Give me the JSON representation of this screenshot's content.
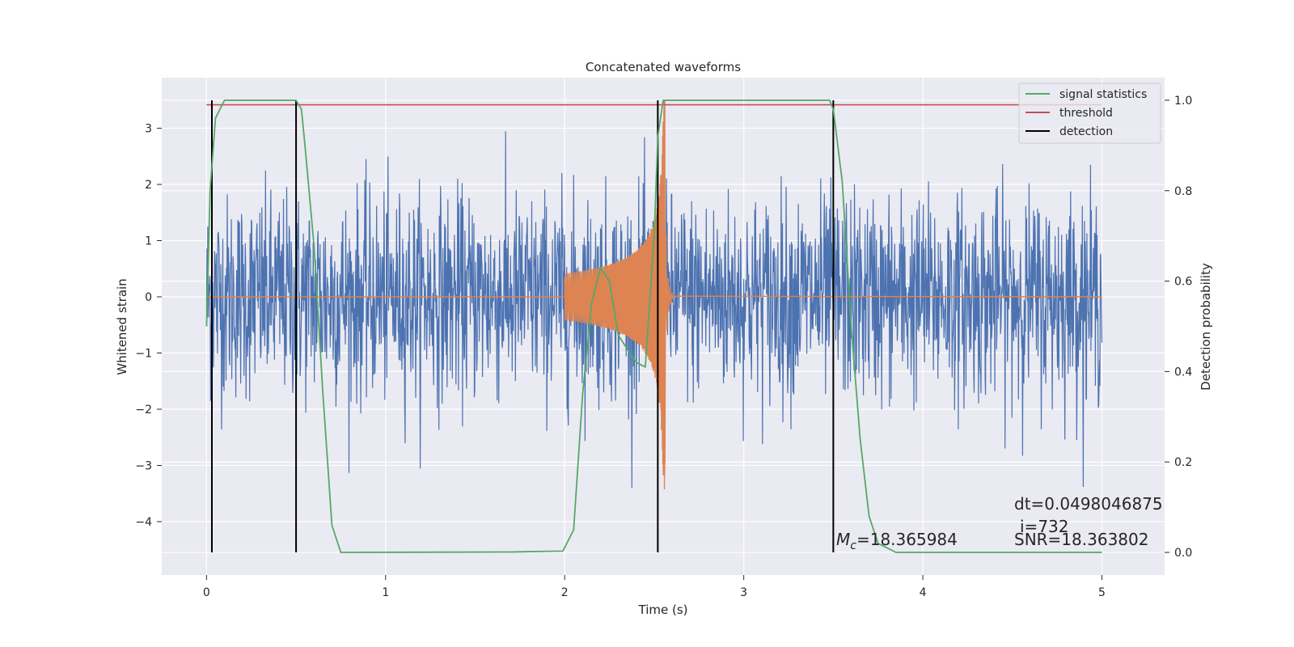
{
  "chart_data": {
    "type": "line",
    "title": "Concatenated waveforms",
    "xlabel": "Time (s)",
    "ylabel": "Whitened strain",
    "y2label": "Detection probability",
    "xlim": [
      -0.25,
      5.35
    ],
    "ylim": [
      -4.95,
      3.9
    ],
    "y2lim": [
      -0.05,
      1.05
    ],
    "grid": true,
    "x_ticks": [
      0,
      1,
      2,
      3,
      4,
      5
    ],
    "y_ticks": [
      -4,
      -3,
      -2,
      -1,
      0,
      1,
      2,
      3
    ],
    "y2_ticks": [
      0.0,
      0.2,
      0.4,
      0.6,
      0.8,
      1.0
    ],
    "legend": {
      "placement": "top-right",
      "entries": [
        "signal statistics",
        "threshold",
        "detection"
      ]
    },
    "colors": {
      "strain": "#4c72b0",
      "template": "#dd8452",
      "signal_statistics": "#55a868",
      "threshold": "#c44e52",
      "detection": "#000000",
      "background": "#eaeaf2"
    },
    "series": [
      {
        "name": "signal statistics",
        "axis": "right",
        "points": [
          [
            0.0,
            0.5
          ],
          [
            0.02,
            0.8
          ],
          [
            0.05,
            0.96
          ],
          [
            0.1,
            1.0
          ],
          [
            0.5,
            1.0
          ],
          [
            0.53,
            0.98
          ],
          [
            0.55,
            0.9
          ],
          [
            0.6,
            0.68
          ],
          [
            0.65,
            0.35
          ],
          [
            0.7,
            0.06
          ],
          [
            0.75,
            0.0
          ],
          [
            1.7,
            0.001
          ],
          [
            1.99,
            0.003
          ],
          [
            2.05,
            0.05
          ],
          [
            2.1,
            0.35
          ],
          [
            2.15,
            0.55
          ],
          [
            2.2,
            0.63
          ],
          [
            2.25,
            0.6
          ],
          [
            2.3,
            0.48
          ],
          [
            2.35,
            0.45
          ],
          [
            2.4,
            0.42
          ],
          [
            2.45,
            0.41
          ],
          [
            2.5,
            0.7
          ],
          [
            2.52,
            0.92
          ],
          [
            2.55,
            1.0
          ],
          [
            3.48,
            1.0
          ],
          [
            3.5,
            0.98
          ],
          [
            3.55,
            0.82
          ],
          [
            3.6,
            0.5
          ],
          [
            3.65,
            0.25
          ],
          [
            3.7,
            0.08
          ],
          [
            3.75,
            0.02
          ],
          [
            3.85,
            0.0
          ],
          [
            5.0,
            0.0
          ]
        ]
      },
      {
        "name": "threshold",
        "axis": "right",
        "points": [
          [
            0.0,
            0.99
          ],
          [
            5.0,
            0.99
          ]
        ]
      }
    ],
    "detections": [
      0.03,
      0.5,
      2.52,
      3.5
    ],
    "template_event": {
      "start": 2.0,
      "merger": 2.56,
      "peak": 3.5,
      "min": -3.2
    },
    "strain_noise": {
      "sigma": 0.9,
      "range": [
        -3.4,
        3.45
      ]
    },
    "annotations": {
      "dt": "dt=0.0498046875",
      "i": "i=732",
      "mc_symbol": "M",
      "mc_sub": "c",
      "mc_value": "=18.365984",
      "snr": "SNR=18.363802"
    }
  }
}
